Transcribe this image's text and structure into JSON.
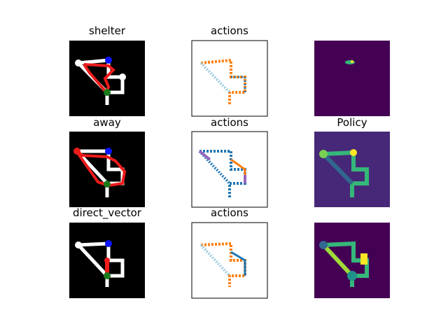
{
  "figure": {
    "colors": {
      "background": "#ffffff",
      "track": "#ffffff",
      "path_red": "#ee1b1b",
      "start_blue": "#0a14ff",
      "goal_green": "#1a7a1a",
      "viridis_dark": "#440154",
      "viridis_mid": "#31688e",
      "viridis_teal": "#21918c",
      "viridis_green": "#35b779",
      "viridis_yellow": "#fde725",
      "action_blue": "#1f77b4",
      "action_orange": "#ff7f0e",
      "action_purple": "#9467bd",
      "action_lightblue": "#9ecae1"
    }
  },
  "chart_data": [
    {
      "type": "heatmap",
      "title": "shelter",
      "row": 0,
      "col": 0,
      "content": "maze-with-path",
      "path_color": "red"
    },
    {
      "type": "heatmap",
      "title": "actions",
      "row": 0,
      "col": 1,
      "content": "action-map"
    },
    {
      "type": "heatmap",
      "title": "",
      "row": 0,
      "col": 2,
      "content": "value-map",
      "colormap": "viridis",
      "note_visible": "small bright spot"
    },
    {
      "type": "heatmap",
      "title": "away",
      "row": 1,
      "col": 0,
      "content": "maze-with-path",
      "path_color": "red"
    },
    {
      "type": "heatmap",
      "title": "actions",
      "row": 1,
      "col": 1,
      "content": "action-map"
    },
    {
      "type": "heatmap",
      "title": "Policy",
      "row": 1,
      "col": 2,
      "content": "value-map",
      "colormap": "viridis"
    },
    {
      "type": "heatmap",
      "title": "direct_vector",
      "row": 2,
      "col": 0,
      "content": "maze-with-path",
      "path_color": "red"
    },
    {
      "type": "heatmap",
      "title": "actions",
      "row": 2,
      "col": 1,
      "content": "action-map"
    },
    {
      "type": "heatmap",
      "title": "",
      "row": 2,
      "col": 2,
      "content": "value-map",
      "colormap": "viridis"
    }
  ]
}
